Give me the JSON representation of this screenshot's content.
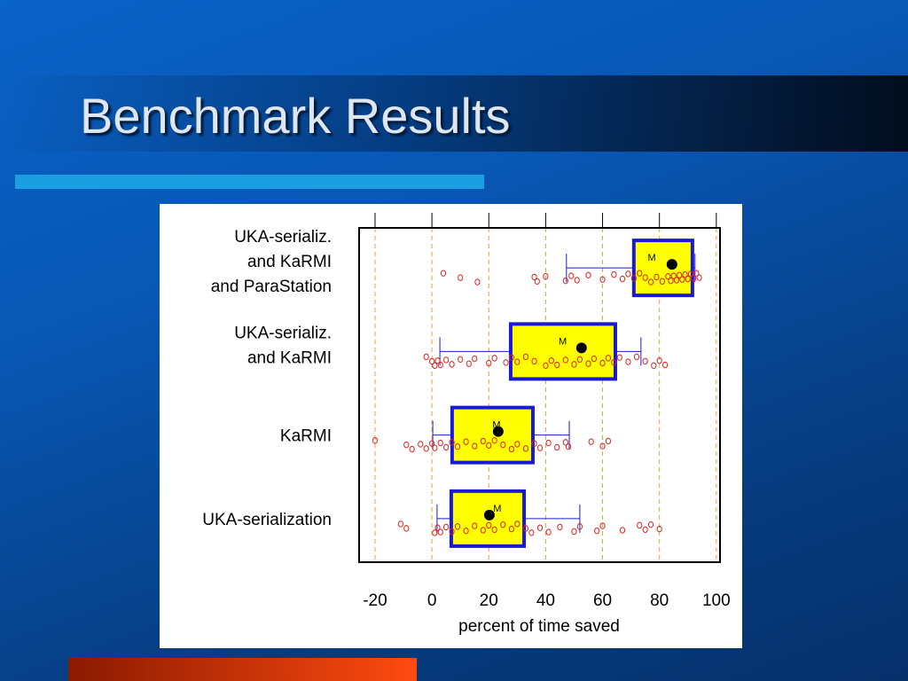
{
  "title": "Benchmark Results",
  "chart_data": {
    "type": "box",
    "x_label": "percent of time saved",
    "xlim": [
      -25.6,
      101.3
    ],
    "xticks": [
      -20,
      0,
      20,
      40,
      60,
      80,
      100
    ],
    "grid": true,
    "mean_label": "M",
    "box_color": "#ffff00",
    "box_edge_color": "#1a1ad6",
    "point_color": "#e02020",
    "series": [
      {
        "name": [
          "UKA-serializ.",
          "and KaRMI",
          "and ParaStation"
        ],
        "whisker_low": 47.3,
        "q1": 71.0,
        "median": 84.4,
        "q3": 91.6,
        "whisker_high": 92.5,
        "mean": 77.3,
        "points": [
          4,
          10,
          16,
          36,
          37,
          40,
          47,
          49,
          51,
          55,
          60,
          64,
          67,
          69,
          71,
          73,
          75,
          77,
          79,
          81,
          83,
          84,
          85,
          86,
          87,
          88,
          89,
          90,
          91,
          92,
          93,
          94
        ]
      },
      {
        "name": [
          "UKA-serializ.",
          "and KaRMI"
        ],
        "whisker_low": 2.8,
        "q1": 27.7,
        "median": 52.6,
        "q3": 64.5,
        "whisker_high": 73.5,
        "mean": 46.0,
        "points": [
          -2,
          0,
          1,
          2,
          3,
          5,
          7,
          10,
          13,
          15,
          20,
          22,
          26,
          28,
          30,
          33,
          36,
          40,
          42,
          44,
          47,
          50,
          52,
          55,
          57,
          60,
          62,
          64,
          66,
          69,
          72,
          75,
          78,
          80,
          82
        ]
      },
      {
        "name": [
          "KaRMI"
        ],
        "whisker_low": 0.3,
        "q1": 7.1,
        "median": 23.3,
        "q3": 35.5,
        "whisker_high": 48.3,
        "mean": 22.7,
        "points": [
          -20,
          -9,
          -7,
          -4,
          -2,
          0,
          1,
          3,
          5,
          7,
          9,
          12,
          15,
          18,
          20,
          22,
          25,
          28,
          30,
          33,
          36,
          38,
          41,
          44,
          47,
          48,
          56,
          60,
          62
        ]
      },
      {
        "name": [
          "UKA-serialization"
        ],
        "whisker_low": 1.8,
        "q1": 6.8,
        "median": 20.2,
        "q3": 32.4,
        "whisker_high": 52.0,
        "mean": 23.0,
        "points": [
          -11,
          -9,
          1,
          2,
          3,
          5,
          7,
          9,
          12,
          15,
          18,
          20,
          22,
          25,
          28,
          30,
          33,
          35,
          38,
          41,
          45,
          50,
          52,
          58,
          60,
          67,
          73,
          75,
          77,
          80
        ]
      }
    ]
  }
}
